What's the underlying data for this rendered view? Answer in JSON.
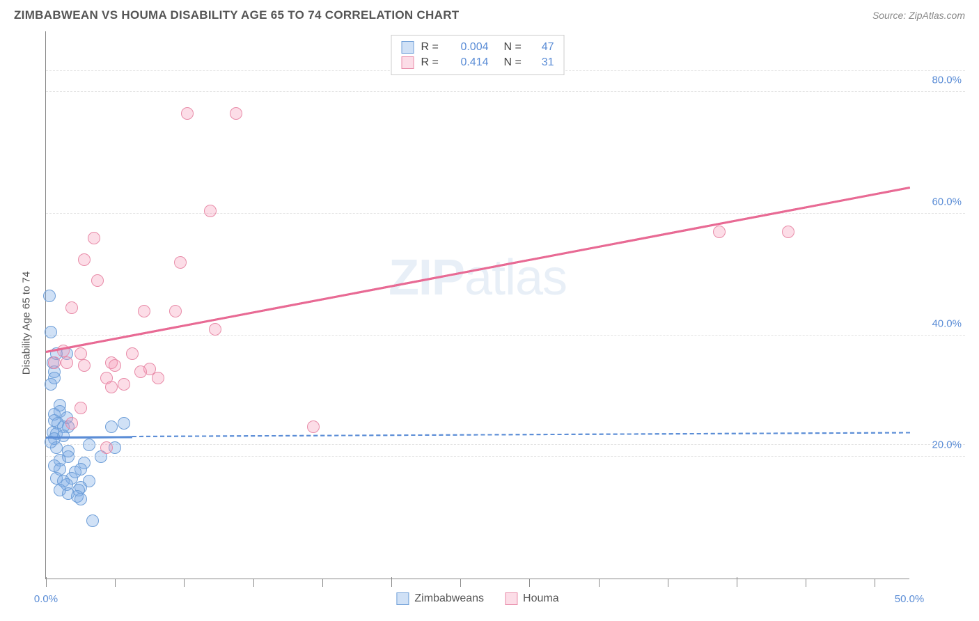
{
  "title": "ZIMBABWEAN VS HOUMA DISABILITY AGE 65 TO 74 CORRELATION CHART",
  "source": "Source: ZipAtlas.com",
  "ylabel": "Disability Age 65 to 74",
  "watermark_bold": "ZIP",
  "watermark_light": "atlas",
  "chart": {
    "type": "scatter",
    "xlim": [
      0,
      50
    ],
    "ylim": [
      0,
      90
    ],
    "x_ticks_major": [
      0,
      20,
      40
    ],
    "x_ticks_minor": [
      4,
      8,
      12,
      16,
      24,
      28,
      32,
      36,
      44,
      48
    ],
    "x_tick_labels": [
      {
        "pos": 0,
        "label": "0.0%"
      },
      {
        "pos": 50,
        "label": "50.0%"
      }
    ],
    "y_gridlines": [
      20,
      40,
      60,
      80,
      83.5,
      22
    ],
    "y_tick_labels": [
      {
        "pos": 20,
        "label": "20.0%"
      },
      {
        "pos": 40,
        "label": "40.0%"
      },
      {
        "pos": 60,
        "label": "60.0%"
      },
      {
        "pos": 80,
        "label": "80.0%"
      }
    ],
    "background_color": "#ffffff",
    "grid_color": "#e3e3e3"
  },
  "series": {
    "zimbabwean": {
      "label": "Zimbabweans",
      "fill_color": "rgba(120,170,230,0.35)",
      "stroke_color": "#6f9fd8",
      "point_radius": 9,
      "r_value": "0.004",
      "n_value": "47",
      "trend": {
        "x1": 0,
        "y1": 23.5,
        "x2": 50,
        "y2": 24.2,
        "color": "#5b8dd6",
        "solid_until_x": 5
      },
      "points": [
        [
          0.2,
          46.5
        ],
        [
          0.3,
          40.5
        ],
        [
          0.4,
          35.5
        ],
        [
          0.5,
          34
        ],
        [
          0.5,
          33
        ],
        [
          0.3,
          32
        ],
        [
          0.6,
          37
        ],
        [
          1.2,
          37
        ],
        [
          0.8,
          28.5
        ],
        [
          0.8,
          27.5
        ],
        [
          0.5,
          27
        ],
        [
          1.2,
          26.5
        ],
        [
          0.5,
          26
        ],
        [
          0.7,
          25.5
        ],
        [
          1.0,
          25
        ],
        [
          1.3,
          25
        ],
        [
          4.5,
          25.5
        ],
        [
          3.8,
          25
        ],
        [
          0.4,
          24
        ],
        [
          0.6,
          23.8
        ],
        [
          1.0,
          23.5
        ],
        [
          0.5,
          23
        ],
        [
          2.5,
          22
        ],
        [
          4.0,
          21.5
        ],
        [
          0.6,
          21.5
        ],
        [
          1.3,
          21
        ],
        [
          1.3,
          20
        ],
        [
          3.2,
          20
        ],
        [
          0.8,
          19.5
        ],
        [
          2.2,
          19
        ],
        [
          0.5,
          18.5
        ],
        [
          0.8,
          18
        ],
        [
          2.0,
          18
        ],
        [
          1.7,
          17.5
        ],
        [
          0.6,
          16.5
        ],
        [
          1.5,
          16.5
        ],
        [
          1.0,
          16
        ],
        [
          2.5,
          16
        ],
        [
          1.2,
          15.5
        ],
        [
          2.0,
          15
        ],
        [
          0.8,
          14.5
        ],
        [
          1.9,
          14.5
        ],
        [
          1.3,
          14
        ],
        [
          1.8,
          13.5
        ],
        [
          2.0,
          13
        ],
        [
          2.7,
          9.5
        ],
        [
          0.3,
          22.5
        ]
      ]
    },
    "houma": {
      "label": "Houma",
      "fill_color": "rgba(245,150,180,0.32)",
      "stroke_color": "#e88ba8",
      "point_radius": 9,
      "r_value": "0.414",
      "n_value": "31",
      "trend": {
        "x1": 0,
        "y1": 37.5,
        "x2": 50,
        "y2": 64.5,
        "color": "#e86a94",
        "solid_until_x": 50
      },
      "points": [
        [
          8.2,
          76.5
        ],
        [
          11.0,
          76.5
        ],
        [
          9.5,
          60.5
        ],
        [
          2.8,
          56
        ],
        [
          2.2,
          52.5
        ],
        [
          7.8,
          52
        ],
        [
          3.0,
          49
        ],
        [
          1.5,
          44.5
        ],
        [
          7.5,
          44
        ],
        [
          5.7,
          44
        ],
        [
          9.8,
          41
        ],
        [
          1.0,
          37.5
        ],
        [
          2.0,
          37
        ],
        [
          5.0,
          37
        ],
        [
          1.2,
          35.5
        ],
        [
          3.8,
          35.5
        ],
        [
          2.2,
          35
        ],
        [
          4.0,
          35
        ],
        [
          6.0,
          34.5
        ],
        [
          5.5,
          34
        ],
        [
          3.5,
          33
        ],
        [
          6.5,
          33
        ],
        [
          4.5,
          32
        ],
        [
          3.8,
          31.5
        ],
        [
          2.0,
          28
        ],
        [
          1.5,
          25.5
        ],
        [
          3.5,
          21.5
        ],
        [
          15.5,
          25
        ],
        [
          39.0,
          57
        ],
        [
          43.0,
          57
        ],
        [
          0.5,
          35.5
        ]
      ]
    }
  },
  "legend_top": [
    {
      "swatch_fill": "rgba(120,170,230,0.35)",
      "swatch_stroke": "#6f9fd8",
      "r": "0.004",
      "n": "47"
    },
    {
      "swatch_fill": "rgba(245,150,180,0.32)",
      "swatch_stroke": "#e88ba8",
      "r": "0.414",
      "n": "31"
    }
  ],
  "legend_labels": {
    "r": "R =",
    "n": "N ="
  }
}
